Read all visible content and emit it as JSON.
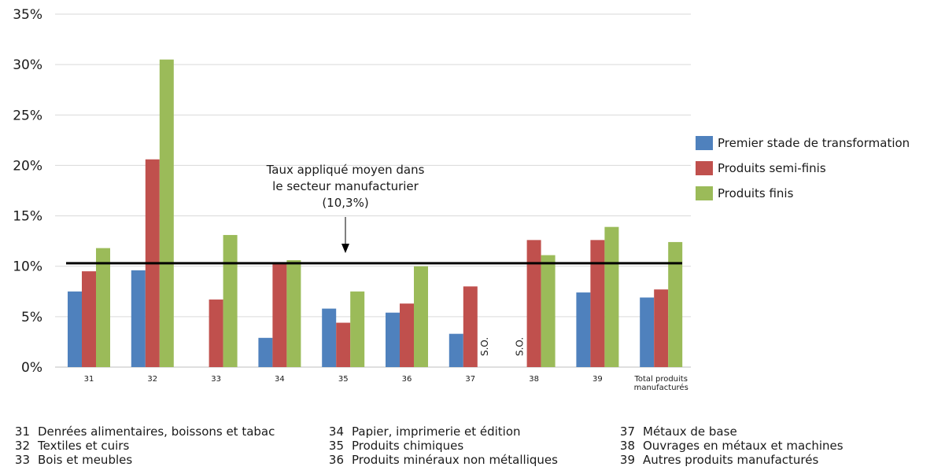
{
  "chart_data": {
    "type": "bar",
    "categories": [
      "31",
      "32",
      "33",
      "34",
      "35",
      "36",
      "37",
      "38",
      "39",
      "Total produits manufacturés"
    ],
    "series": [
      {
        "name": "Premier stade de transformation",
        "color": "#4f81bd",
        "values": [
          7.5,
          9.6,
          null,
          2.9,
          5.8,
          5.4,
          3.3,
          null,
          7.4,
          6.9
        ]
      },
      {
        "name": "Produits semi-finis",
        "color": "#c0504d",
        "values": [
          9.5,
          20.6,
          6.7,
          10.3,
          4.4,
          6.3,
          8.0,
          12.6,
          12.6,
          7.7
        ]
      },
      {
        "name": "Produits finis",
        "color": "#9bbb59",
        "values": [
          11.8,
          30.5,
          13.1,
          10.6,
          7.5,
          10.0,
          null,
          11.1,
          13.9,
          12.4
        ]
      }
    ],
    "ylim": [
      0,
      35
    ],
    "yticks": [
      0,
      5,
      10,
      15,
      20,
      25,
      30,
      35
    ],
    "ytick_labels": [
      "0%",
      "5%",
      "10%",
      "15%",
      "20%",
      "25%",
      "30%",
      "35%"
    ],
    "grid": true,
    "legend_position": "right",
    "reference_line": {
      "value": 10.3
    },
    "annotation": {
      "lines": [
        "Taux appliqué moyen dans",
        "le secteur manufacturier",
        "(10,3%)"
      ],
      "arrow": "down"
    },
    "na_markers": [
      {
        "category": "37",
        "series": "Produits finis",
        "label": "S.O."
      },
      {
        "category": "38",
        "series": "Premier stade de transformation",
        "label": "S.O."
      }
    ]
  },
  "category_tick_labels": [
    [
      "31"
    ],
    [
      "32"
    ],
    [
      "33"
    ],
    [
      "34"
    ],
    [
      "35"
    ],
    [
      "36"
    ],
    [
      "37"
    ],
    [
      "38"
    ],
    [
      "39"
    ],
    [
      "Total produits",
      "manufacturés"
    ]
  ],
  "footnote": {
    "columns": [
      [
        {
          "code": "31",
          "label": "Denrées alimentaires, boissons et tabac"
        },
        {
          "code": "32",
          "label": "Textiles et cuirs"
        },
        {
          "code": "33",
          "label": "Bois et meubles"
        }
      ],
      [
        {
          "code": "34",
          "label": "Papier, imprimerie et édition"
        },
        {
          "code": "35",
          "label": "Produits chimiques"
        },
        {
          "code": "36",
          "label": "Produits minéraux non métalliques"
        }
      ],
      [
        {
          "code": "37",
          "label": "Métaux de base"
        },
        {
          "code": "38",
          "label": "Ouvrages en métaux et machines"
        },
        {
          "code": "39",
          "label": "Autres produits manufacturés"
        }
      ]
    ]
  }
}
